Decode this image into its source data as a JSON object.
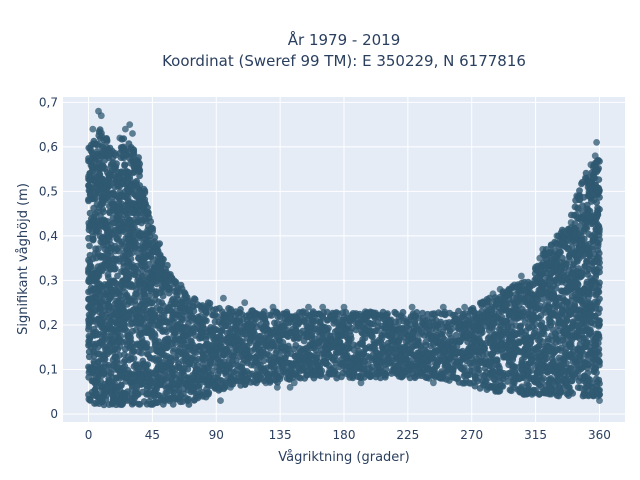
{
  "chart_data": {
    "type": "scatter",
    "title_line1": "År 1979 - 2019",
    "title_line2": "Koordinat (Sweref 99 TM): E 350229, N 6177816",
    "xlabel": "Vågriktning (grader)",
    "ylabel": "Signifikant våghöjd (m)",
    "xlim": [
      -18,
      378
    ],
    "ylim": [
      -0.018,
      0.712
    ],
    "xticks": [
      0,
      45,
      90,
      135,
      180,
      225,
      270,
      315,
      360
    ],
    "xtick_labels": [
      "0",
      "45",
      "90",
      "135",
      "180",
      "225",
      "270",
      "315",
      "360"
    ],
    "yticks": [
      0,
      0.1,
      0.2,
      0.3,
      0.4,
      0.5,
      0.6,
      0.7
    ],
    "ytick_labels": [
      "0",
      "0,1",
      "0,2",
      "0,3",
      "0,4",
      "0,5",
      "0,6",
      "0,7"
    ],
    "grid": true,
    "marker_color": "#2f5871",
    "background_color": "#e5ecf6",
    "envelope": {
      "description_x": [
        0,
        5,
        10,
        15,
        20,
        25,
        30,
        35,
        40,
        45,
        50,
        55,
        60,
        65,
        70,
        75,
        80,
        85,
        90,
        100,
        120,
        135,
        150,
        180,
        210,
        225,
        240,
        260,
        270,
        280,
        290,
        300,
        310,
        315,
        320,
        325,
        330,
        335,
        340,
        345,
        350,
        355,
        360
      ],
      "upper_y": [
        0.6,
        0.62,
        0.66,
        0.62,
        0.58,
        0.63,
        0.6,
        0.58,
        0.5,
        0.42,
        0.38,
        0.34,
        0.3,
        0.29,
        0.27,
        0.26,
        0.25,
        0.25,
        0.24,
        0.24,
        0.23,
        0.23,
        0.23,
        0.23,
        0.23,
        0.23,
        0.23,
        0.23,
        0.24,
        0.26,
        0.27,
        0.29,
        0.3,
        0.33,
        0.36,
        0.38,
        0.4,
        0.42,
        0.46,
        0.5,
        0.54,
        0.56,
        0.6
      ],
      "lower_y": [
        0.03,
        0.02,
        0.02,
        0.02,
        0.02,
        0.02,
        0.02,
        0.02,
        0.02,
        0.02,
        0.02,
        0.02,
        0.02,
        0.02,
        0.02,
        0.03,
        0.03,
        0.04,
        0.05,
        0.06,
        0.07,
        0.07,
        0.08,
        0.08,
        0.08,
        0.08,
        0.08,
        0.07,
        0.06,
        0.05,
        0.05,
        0.05,
        0.04,
        0.04,
        0.04,
        0.04,
        0.04,
        0.04,
        0.04,
        0.04,
        0.04,
        0.04,
        0.04
      ]
    },
    "outliers": [
      {
        "x": 7,
        "y": 0.68
      },
      {
        "x": 9,
        "y": 0.67
      },
      {
        "x": 3,
        "y": 0.64
      },
      {
        "x": 26,
        "y": 0.64
      },
      {
        "x": 29,
        "y": 0.65
      },
      {
        "x": 31,
        "y": 0.63
      },
      {
        "x": 22,
        "y": 0.62
      },
      {
        "x": 358,
        "y": 0.61
      },
      {
        "x": 357,
        "y": 0.58
      },
      {
        "x": 354,
        "y": 0.56
      },
      {
        "x": 350,
        "y": 0.53
      },
      {
        "x": 344,
        "y": 0.49
      },
      {
        "x": 345,
        "y": 0.46
      },
      {
        "x": 340,
        "y": 0.43
      },
      {
        "x": 326,
        "y": 0.38
      },
      {
        "x": 330,
        "y": 0.4
      },
      {
        "x": 320,
        "y": 0.37
      },
      {
        "x": 318,
        "y": 0.35
      },
      {
        "x": 315,
        "y": 0.33
      },
      {
        "x": 305,
        "y": 0.31
      },
      {
        "x": 300,
        "y": 0.29
      },
      {
        "x": 290,
        "y": 0.28
      },
      {
        "x": 285,
        "y": 0.27
      },
      {
        "x": 93,
        "y": 0.03
      },
      {
        "x": 100,
        "y": 0.06
      },
      {
        "x": 104,
        "y": 0.08
      },
      {
        "x": 110,
        "y": 0.09
      },
      {
        "x": 125,
        "y": 0.07
      },
      {
        "x": 133,
        "y": 0.06
      },
      {
        "x": 142,
        "y": 0.06
      },
      {
        "x": 145,
        "y": 0.07
      },
      {
        "x": 170,
        "y": 0.1
      },
      {
        "x": 192,
        "y": 0.07
      },
      {
        "x": 197,
        "y": 0.09
      },
      {
        "x": 215,
        "y": 0.1
      },
      {
        "x": 240,
        "y": 0.08
      },
      {
        "x": 243,
        "y": 0.07
      },
      {
        "x": 250,
        "y": 0.09
      },
      {
        "x": 268,
        "y": 0.07
      },
      {
        "x": 275,
        "y": 0.08
      },
      {
        "x": 300,
        "y": 0.06
      },
      {
        "x": 155,
        "y": 0.24
      },
      {
        "x": 165,
        "y": 0.24
      },
      {
        "x": 180,
        "y": 0.24
      },
      {
        "x": 195,
        "y": 0.23
      },
      {
        "x": 228,
        "y": 0.24
      },
      {
        "x": 250,
        "y": 0.24
      },
      {
        "x": 265,
        "y": 0.24
      },
      {
        "x": 130,
        "y": 0.24
      },
      {
        "x": 110,
        "y": 0.25
      },
      {
        "x": 95,
        "y": 0.26
      },
      {
        "x": 360,
        "y": 0.03
      },
      {
        "x": 359,
        "y": 0.04
      }
    ]
  }
}
